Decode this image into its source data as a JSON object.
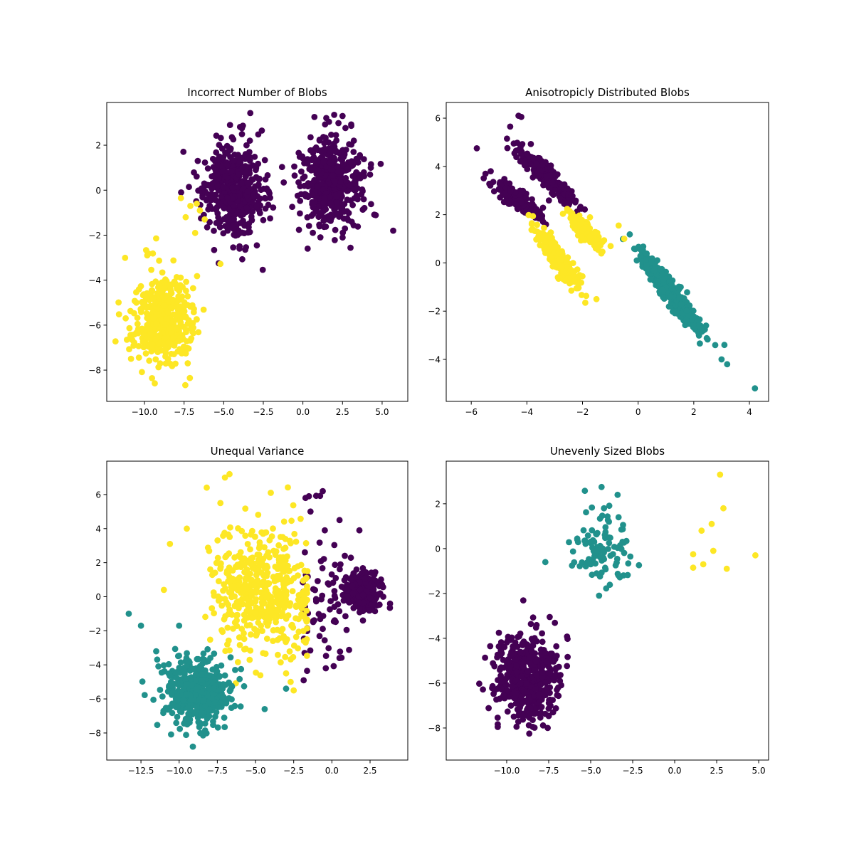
{
  "chart_data": [
    {
      "type": "scatter",
      "title": "Incorrect Number of Blobs",
      "xlim": [
        -12.38,
        6.62
      ],
      "ylim": [
        -9.39,
        3.9
      ],
      "xticks": [
        "−10.0",
        "−7.5",
        "−5.0",
        "−2.5",
        "0.0",
        "2.5",
        "5.0"
      ],
      "yticks": [
        "2",
        "0",
        "−2",
        "−4",
        "−6",
        "−8"
      ],
      "grid": false,
      "clusters": [
        {
          "color": "#440154",
          "center": [
            -4.3,
            0.0
          ],
          "sd": [
            1.0,
            1.0
          ],
          "n": 480
        },
        {
          "color": "#440154",
          "center": [
            1.8,
            0.3
          ],
          "sd": [
            1.0,
            1.0
          ],
          "n": 480
        },
        {
          "color": "#fde725",
          "center": [
            -8.8,
            -5.7
          ],
          "sd": [
            0.95,
            0.95
          ],
          "n": 480
        }
      ],
      "points": [
        {
          "color": "#fde725",
          "xy": [
            [
              -7.7,
              -0.35
            ],
            [
              -6.7,
              -0.6
            ],
            [
              -7.4,
              -1.2
            ],
            [
              -6.8,
              -1.9
            ],
            [
              -6.2,
              -1.3
            ],
            [
              -6.5,
              -0.9
            ],
            [
              -7.1,
              -0.7
            ]
          ]
        },
        {
          "color": "#440154",
          "xy": [
            [
              5.7,
              -1.8
            ],
            [
              -4.0,
              -2.6
            ],
            [
              0.3,
              -2.6
            ],
            [
              2.5,
              3.3
            ],
            [
              -4.6,
              2.9
            ]
          ]
        }
      ]
    },
    {
      "type": "scatter",
      "title": "Anisotropicly Distributed Blobs",
      "xlim": [
        -6.9,
        4.69
      ],
      "ylim": [
        -5.74,
        6.65
      ],
      "xticks": [
        "−6",
        "−4",
        "−2",
        "0",
        "2",
        "4"
      ],
      "yticks": [
        "6",
        "4",
        "2",
        "0",
        "−2",
        "−4"
      ],
      "grid": false,
      "clusters": [
        {
          "color": "#440154",
          "center": [
            -3.3,
            3.6
          ],
          "direction": [
            1,
            -1.15
          ],
          "sd_major": 0.75,
          "sd_minor": 0.16,
          "n": 260
        },
        {
          "color": "#440154",
          "center": [
            -4.3,
            2.6
          ],
          "direction": [
            1,
            -0.85
          ],
          "sd_major": 0.6,
          "sd_minor": 0.16,
          "n": 200
        },
        {
          "color": "#fde725",
          "center": [
            -2.9,
            0.2
          ],
          "direction": [
            1,
            -1.7
          ],
          "sd_major": 0.75,
          "sd_minor": 0.15,
          "n": 280
        },
        {
          "color": "#fde725",
          "center": [
            -1.9,
            1.3
          ],
          "direction": [
            1,
            -1.2
          ],
          "sd_major": 0.45,
          "sd_minor": 0.14,
          "n": 150
        },
        {
          "color": "#21918c",
          "center": [
            1.1,
            -1.1
          ],
          "direction": [
            1,
            -1.55
          ],
          "sd_major": 0.95,
          "sd_minor": 0.14,
          "n": 480
        }
      ],
      "points": [
        {
          "color": "#440154",
          "xy": [
            [
              -5.8,
              4.75
            ],
            [
              -4.3,
              6.1
            ],
            [
              -4.2,
              6.05
            ],
            [
              -4.6,
              5.65
            ],
            [
              -5.3,
              3.8
            ]
          ]
        },
        {
          "color": "#fde725",
          "xy": [
            [
              -0.7,
              1.55
            ],
            [
              -0.5,
              1.0
            ],
            [
              -1.5,
              -1.5
            ],
            [
              -1.9,
              -1.65
            ],
            [
              -2.4,
              -1.15
            ]
          ]
        },
        {
          "color": "#21918c",
          "xy": [
            [
              4.2,
              -5.2
            ],
            [
              3.2,
              -4.2
            ],
            [
              3.1,
              -3.4
            ],
            [
              3.0,
              -4.0
            ]
          ]
        }
      ]
    },
    {
      "type": "scatter",
      "title": "Unequal Variance",
      "xlim": [
        -14.74,
        4.97
      ],
      "ylim": [
        -9.59,
        7.96
      ],
      "xticks": [
        "−12.5",
        "−10.0",
        "−7.5",
        "−5.0",
        "−2.5",
        "0.0",
        "2.5"
      ],
      "yticks": [
        "6",
        "4",
        "2",
        "0",
        "−2",
        "−4",
        "−6",
        "−8"
      ],
      "grid": false,
      "clusters": [
        {
          "color": "#440154",
          "center": [
            2.0,
            0.3
          ],
          "sd": [
            0.5,
            0.5
          ],
          "n": 420
        },
        {
          "color": "#440154",
          "center": [
            -0.6,
            0.0
          ],
          "sd": [
            1.0,
            2.2
          ],
          "n": 70,
          "xmin": -1.9
        },
        {
          "color": "#fde725",
          "center": [
            -4.5,
            0.3
          ],
          "sd": [
            1.6,
            1.9
          ],
          "n": 480,
          "xmax": -1.6
        },
        {
          "color": "#21918c",
          "center": [
            -8.8,
            -5.6
          ],
          "sd": [
            1.05,
            1.0
          ],
          "n": 480
        }
      ],
      "points": [
        {
          "color": "#fde725",
          "xy": [
            [
              -7.0,
              7.0
            ],
            [
              -6.7,
              7.2
            ],
            [
              -9.5,
              4.0
            ],
            [
              -10.6,
              3.1
            ],
            [
              -11.0,
              0.4
            ],
            [
              -3.0,
              -4.5
            ],
            [
              -2.5,
              -5.5
            ],
            [
              -2.7,
              -5.0
            ],
            [
              -4.0,
              6.1
            ],
            [
              -7.3,
              5.5
            ]
          ]
        },
        {
          "color": "#21918c",
          "xy": [
            [
              -13.3,
              -1.0
            ],
            [
              -12.5,
              -1.7
            ],
            [
              -4.4,
              -6.6
            ],
            [
              -9.1,
              -8.8
            ],
            [
              -11.5,
              -3.2
            ],
            [
              -10.0,
              -1.7
            ],
            [
              -3.0,
              -5.4
            ]
          ]
        },
        {
          "color": "#440154",
          "xy": [
            [
              -0.6,
              6.2
            ],
            [
              -1.5,
              5.9
            ],
            [
              -1.4,
              5.0
            ],
            [
              3.8,
              -0.65
            ],
            [
              0.5,
              -3.6
            ],
            [
              -0.4,
              -4.2
            ],
            [
              0.5,
              4.5
            ],
            [
              1.8,
              3.9
            ]
          ]
        }
      ]
    },
    {
      "type": "scatter",
      "title": "Unevenly Sized Blobs",
      "xlim": [
        -13.6,
        5.59
      ],
      "ylim": [
        -9.43,
        3.9
      ],
      "xticks": [
        "−10.0",
        "−7.5",
        "−5.0",
        "−2.5",
        "0.0",
        "2.5",
        "5.0"
      ],
      "yticks": [
        "2",
        "0",
        "−2",
        "−4",
        "−6",
        "−8"
      ],
      "grid": false,
      "clusters": [
        {
          "color": "#440154",
          "center": [
            -8.8,
            -5.8
          ],
          "sd": [
            0.95,
            0.95
          ],
          "n": 500
        },
        {
          "color": "#21918c",
          "center": [
            -4.3,
            0.2
          ],
          "sd": [
            0.9,
            0.9
          ],
          "n": 100
        }
      ],
      "points": [
        {
          "color": "#fde725",
          "xy": [
            [
              2.7,
              3.3
            ],
            [
              2.9,
              1.8
            ],
            [
              2.2,
              1.1
            ],
            [
              1.6,
              0.8
            ],
            [
              1.1,
              -0.25
            ],
            [
              2.3,
              -0.1
            ],
            [
              1.1,
              -0.85
            ],
            [
              1.7,
              -0.7
            ],
            [
              3.1,
              -0.9
            ],
            [
              4.8,
              -0.3
            ]
          ]
        },
        {
          "color": "#21918c",
          "xy": [
            [
              -7.7,
              -0.6
            ],
            [
              -3.4,
              2.4
            ],
            [
              -4.5,
              -2.1
            ]
          ]
        }
      ]
    }
  ]
}
